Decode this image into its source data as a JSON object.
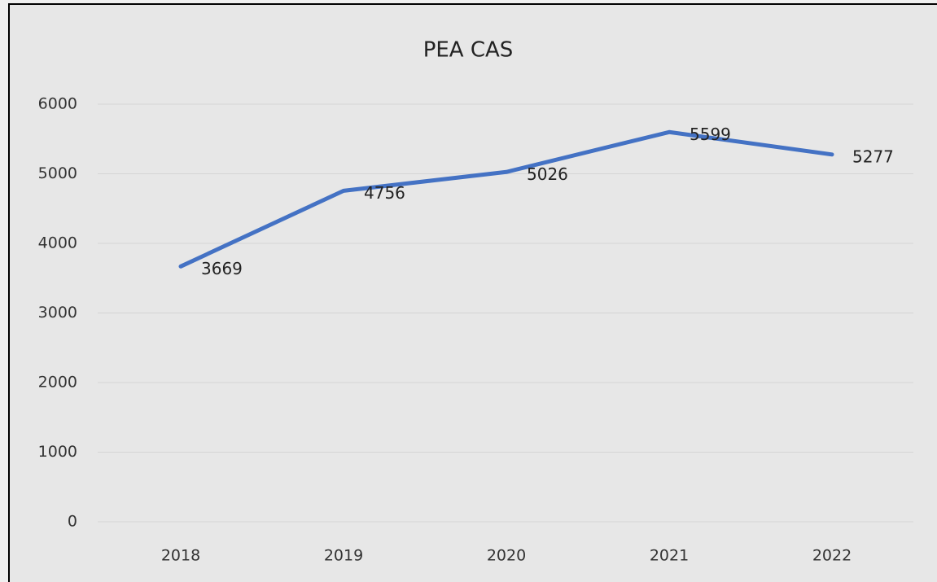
{
  "chart_data": {
    "type": "line",
    "title": "PEA CAS",
    "categories": [
      "2018",
      "2019",
      "2020",
      "2021",
      "2022"
    ],
    "series": [
      {
        "name": "PEA CAS",
        "color": "#4472c4",
        "values": [
          3669,
          4756,
          5026,
          5599,
          5277
        ]
      }
    ],
    "ylim": [
      0,
      6000
    ],
    "yticks": [
      0,
      1000,
      2000,
      3000,
      4000,
      5000,
      6000
    ],
    "grid": true
  }
}
